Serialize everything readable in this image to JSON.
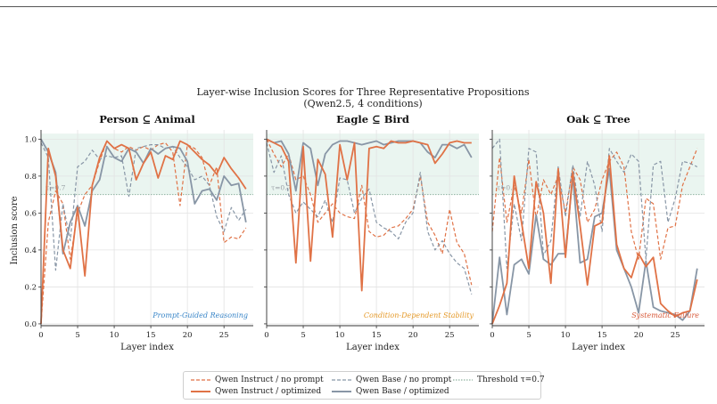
{
  "chart_data": {
    "type": "line",
    "title": "Layer-wise Inclusion Scores for Three Representative Propositions",
    "subtitle": "(Qwen2.5, 4 conditions)",
    "ylabel": "Inclusion score",
    "xlabel": "Layer index",
    "xlim": [
      0,
      29
    ],
    "ylim": [
      -0.01,
      1.05
    ],
    "xticks": [
      "0",
      "5",
      "10",
      "15",
      "20",
      "25"
    ],
    "yticks": [
      "0.0",
      "0.2",
      "0.4",
      "0.6",
      "0.8",
      "1.0"
    ],
    "grid": true,
    "threshold": {
      "value": 0.7,
      "label": "Threshold τ=0.7",
      "annotation": "τ=0.7"
    },
    "shaded_band": [
      0.7,
      1.03
    ],
    "colors": {
      "instruct": "#e07246",
      "base": "#8896a6",
      "threshold": "#8fb2a0",
      "band": "#eaf5f0",
      "label_blue": "#3a86c8",
      "label_orange": "#e59a2a",
      "label_red": "#d85a3a"
    },
    "legend": {
      "placement": "bottom-center",
      "entries": [
        {
          "key": "inst_np",
          "label": "Qwen Instruct / no prompt"
        },
        {
          "key": "inst_opt",
          "label": "Qwen Instruct / optimized"
        },
        {
          "key": "base_np",
          "label": "Qwen Base / no prompt"
        },
        {
          "key": "base_opt",
          "label": "Qwen Base / optimized"
        },
        {
          "key": "threshold",
          "label": "Threshold τ=0.7"
        }
      ]
    },
    "panels": [
      {
        "title": "Person ⊆ Animal",
        "annotation": "Prompt-Guided Reasoning",
        "annotation_color": "label_blue",
        "series": {
          "inst_np": [
            0.0,
            0.55,
            0.72,
            0.65,
            0.35,
            0.6,
            0.7,
            0.75,
            0.88,
            0.99,
            0.95,
            0.93,
            0.96,
            0.94,
            0.96,
            0.94,
            0.97,
            0.98,
            0.93,
            0.64,
            0.97,
            0.95,
            0.9,
            0.75,
            0.85,
            0.44,
            0.47,
            0.46,
            0.52
          ],
          "inst_opt": [
            0.0,
            0.95,
            0.8,
            0.4,
            0.3,
            0.63,
            0.26,
            0.75,
            0.9,
            0.99,
            0.95,
            0.97,
            0.95,
            0.78,
            0.87,
            0.93,
            0.79,
            0.91,
            0.89,
            0.99,
            0.97,
            0.93,
            0.89,
            0.86,
            0.81,
            0.9,
            0.84,
            0.79,
            0.73
          ],
          "base_np": [
            0.98,
            0.9,
            0.29,
            0.65,
            0.45,
            0.85,
            0.88,
            0.94,
            0.89,
            0.91,
            0.9,
            0.91,
            0.69,
            0.95,
            0.96,
            0.97,
            0.97,
            0.95,
            0.96,
            0.9,
            0.85,
            0.78,
            0.8,
            0.75,
            0.58,
            0.5,
            0.63,
            0.56,
            0.62
          ],
          "base_opt": [
            1.0,
            0.93,
            0.82,
            0.38,
            0.55,
            0.64,
            0.53,
            0.72,
            0.78,
            0.96,
            0.9,
            0.88,
            0.95,
            0.93,
            0.87,
            0.95,
            0.92,
            0.95,
            0.96,
            0.95,
            0.88,
            0.65,
            0.72,
            0.73,
            0.67,
            0.8,
            0.75,
            0.76,
            0.55
          ]
        }
      },
      {
        "title": "Eagle ⊆ Bird",
        "annotation": "Condition-Dependent Stability",
        "annotation_color": "label_orange",
        "series": {
          "inst_np": [
            1.0,
            0.92,
            0.85,
            0.92,
            0.78,
            0.8,
            0.7,
            0.55,
            0.6,
            0.65,
            0.6,
            0.58,
            0.57,
            0.75,
            0.5,
            0.47,
            0.48,
            0.52,
            0.53,
            0.57,
            0.62,
            0.8,
            0.55,
            0.48,
            0.38,
            0.62,
            0.44,
            0.38,
            0.21
          ],
          "inst_opt": [
            1.0,
            0.98,
            0.96,
            0.88,
            0.33,
            0.96,
            0.34,
            0.89,
            0.81,
            0.47,
            0.97,
            0.78,
            0.98,
            0.18,
            0.95,
            0.96,
            0.95,
            0.99,
            0.98,
            0.98,
            0.99,
            0.98,
            0.97,
            0.87,
            0.92,
            0.98,
            0.99,
            0.98,
            0.98
          ],
          "base_np": [
            0.98,
            0.82,
            0.91,
            0.7,
            0.6,
            0.66,
            0.62,
            0.58,
            0.67,
            0.55,
            0.79,
            0.78,
            0.6,
            0.68,
            0.73,
            0.55,
            0.52,
            0.5,
            0.46,
            0.55,
            0.6,
            0.82,
            0.5,
            0.4,
            0.45,
            0.38,
            0.33,
            0.3,
            0.16
          ],
          "base_opt": [
            1.0,
            0.98,
            0.99,
            0.92,
            0.72,
            0.98,
            0.95,
            0.75,
            0.92,
            0.97,
            0.99,
            0.99,
            0.98,
            0.97,
            0.98,
            0.99,
            0.97,
            0.98,
            0.99,
            0.99,
            0.99,
            0.98,
            0.93,
            0.9,
            0.97,
            0.97,
            0.95,
            0.97,
            0.9
          ]
        }
      },
      {
        "title": "Oak ⊆ Tree",
        "annotation": "Systematic Failure",
        "annotation_color": "label_red",
        "series": {
          "inst_np": [
            0.5,
            0.9,
            0.55,
            0.75,
            0.6,
            0.89,
            0.57,
            0.78,
            0.7,
            0.8,
            0.6,
            0.85,
            0.78,
            0.55,
            0.62,
            0.78,
            0.88,
            0.93,
            0.85,
            0.5,
            0.35,
            0.68,
            0.65,
            0.35,
            0.52,
            0.53,
            0.75,
            0.85,
            0.95
          ],
          "inst_opt": [
            0.0,
            0.1,
            0.22,
            0.8,
            0.55,
            0.3,
            0.77,
            0.6,
            0.22,
            0.84,
            0.36,
            0.82,
            0.53,
            0.21,
            0.53,
            0.55,
            0.91,
            0.43,
            0.3,
            0.25,
            0.38,
            0.31,
            0.36,
            0.11,
            0.07,
            0.04,
            0.06,
            0.07,
            0.24
          ],
          "base_np": [
            0.95,
            1.0,
            0.3,
            0.65,
            0.45,
            0.95,
            0.93,
            0.37,
            0.45,
            0.85,
            0.58,
            0.86,
            0.58,
            0.88,
            0.75,
            0.5,
            0.95,
            0.88,
            0.82,
            0.92,
            0.88,
            0.35,
            0.86,
            0.88,
            0.55,
            0.68,
            0.88,
            0.87,
            0.85
          ],
          "base_opt": [
            0.0,
            0.36,
            0.05,
            0.32,
            0.35,
            0.27,
            0.59,
            0.35,
            0.32,
            0.38,
            0.38,
            0.8,
            0.33,
            0.35,
            0.58,
            0.6,
            0.84,
            0.4,
            0.3,
            0.2,
            0.06,
            0.34,
            0.09,
            0.07,
            0.06,
            0.05,
            0.02,
            0.07,
            0.3
          ]
        }
      }
    ]
  }
}
